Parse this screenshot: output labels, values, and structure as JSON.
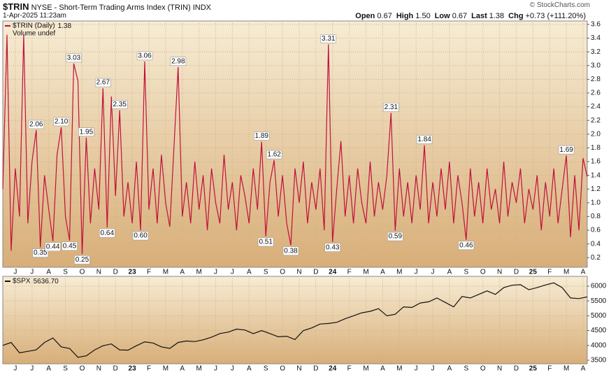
{
  "header": {
    "ticker": "$TRIN",
    "description": "NYSE - Short-Term Trading Arms Index (TRIN)",
    "exchange": "INDX",
    "datetime": "1-Apr-2025 11:23am",
    "quote": [
      {
        "label": "Open",
        "value": "0.67"
      },
      {
        "label": "High",
        "value": "1.50"
      },
      {
        "label": "Low",
        "value": "0.67"
      },
      {
        "label": "Last",
        "value": "1.38"
      },
      {
        "label": "Chg",
        "value": "+0.73 (+111.20%)"
      }
    ],
    "copyright": "© StockCharts.com"
  },
  "chart_data": [
    {
      "type": "line",
      "volume_note": "Volume undef",
      "grid": true,
      "xlim": [
        0,
        140
      ],
      "ylim": [
        0.06,
        3.65
      ],
      "yticks": [
        0.2,
        0.4,
        0.6,
        0.8,
        {
          "value": 1,
          "label": "1.0"
        },
        1.2,
        1.4,
        1.6,
        1.8,
        {
          "value": 2,
          "label": "2.0"
        },
        2.2,
        2.4,
        2.6,
        2.8,
        {
          "value": 3,
          "label": "3.0"
        },
        3.2,
        3.4,
        3.6
      ],
      "xticks": [
        {
          "value": 3,
          "label": "J"
        },
        {
          "value": 7,
          "label": "J"
        },
        {
          "value": 11,
          "label": "A"
        },
        {
          "value": 15,
          "label": "S"
        },
        {
          "value": 19,
          "label": "O"
        },
        {
          "value": 23,
          "label": "N"
        },
        {
          "value": 27,
          "label": "D"
        },
        {
          "value": 31,
          "label": "23"
        },
        {
          "value": 35,
          "label": "F"
        },
        {
          "value": 39,
          "label": "M"
        },
        {
          "value": 43,
          "label": "A"
        },
        {
          "value": 47,
          "label": "M"
        },
        {
          "value": 51,
          "label": "J"
        },
        {
          "value": 55,
          "label": "J"
        },
        {
          "value": 59,
          "label": "A"
        },
        {
          "value": 63,
          "label": "S"
        },
        {
          "value": 67,
          "label": "O"
        },
        {
          "value": 71,
          "label": "N"
        },
        {
          "value": 75,
          "label": "D"
        },
        {
          "value": 79,
          "label": "24"
        },
        {
          "value": 83,
          "label": "F"
        },
        {
          "value": 87,
          "label": "M"
        },
        {
          "value": 91,
          "label": "A"
        },
        {
          "value": 95,
          "label": "M"
        },
        {
          "value": 99,
          "label": "J"
        },
        {
          "value": 103,
          "label": "J"
        },
        {
          "value": 107,
          "label": "A"
        },
        {
          "value": 111,
          "label": "S"
        },
        {
          "value": 115,
          "label": "O"
        },
        {
          "value": 119,
          "label": "N"
        },
        {
          "value": 123,
          "label": "D"
        },
        {
          "value": 127,
          "label": "25"
        },
        {
          "value": 131,
          "label": "F"
        },
        {
          "value": 135,
          "label": "M"
        },
        {
          "value": 139,
          "label": "A"
        }
      ],
      "series": [
        {
          "name": "$TRIN (Daily)",
          "color": "#c0103a",
          "values": [
            1.2,
            3.45,
            0.3,
            1.5,
            0.8,
            3.45,
            0.7,
            1.6,
            2.06,
            0.35,
            1.4,
            0.9,
            0.44,
            1.7,
            2.1,
            0.8,
            0.45,
            3.03,
            2.78,
            0.25,
            1.95,
            0.7,
            1.5,
            0.9,
            2.67,
            0.64,
            2.55,
            1.1,
            2.35,
            0.8,
            1.3,
            0.7,
            1.6,
            0.6,
            3.06,
            0.9,
            1.5,
            0.7,
            1.7,
            1.0,
            0.65,
            1.8,
            2.98,
            0.8,
            1.3,
            0.7,
            1.6,
            0.9,
            1.4,
            0.6,
            1.5,
            1.0,
            0.7,
            1.7,
            0.9,
            1.3,
            0.6,
            1.4,
            1.1,
            0.7,
            1.5,
            0.9,
            1.89,
            0.51,
            1.3,
            1.62,
            0.8,
            1.4,
            0.7,
            0.38,
            1.5,
            1.0,
            1.6,
            0.7,
            1.3,
            0.9,
            1.5,
            0.6,
            3.31,
            0.43,
            1.2,
            1.9,
            0.8,
            1.4,
            0.7,
            1.5,
            1.0,
            0.7,
            1.6,
            0.8,
            1.3,
            0.9,
            1.4,
            2.31,
            0.59,
            1.5,
            0.8,
            1.3,
            0.7,
            1.4,
            0.9,
            1.84,
            0.7,
            1.3,
            0.8,
            1.5,
            0.9,
            1.6,
            0.7,
            1.4,
            1.0,
            0.46,
            1.5,
            0.8,
            1.3,
            0.7,
            1.5,
            0.9,
            1.2,
            0.7,
            1.6,
            0.8,
            1.3,
            1.0,
            1.5,
            0.7,
            1.2,
            0.9,
            1.4,
            0.6,
            1.3,
            0.8,
            1.5,
            0.7,
            1.2,
            1.69,
            0.5,
            1.4,
            0.6,
            1.65,
            1.38
          ],
          "value_labels": [
            null,
            null,
            null,
            null,
            null,
            null,
            null,
            null,
            "2.06",
            "0.35",
            null,
            null,
            "0.44",
            null,
            "2.10",
            null,
            "0.45",
            "3.03",
            null,
            "0.25",
            "1.95",
            null,
            null,
            null,
            "2.67",
            "0.64",
            null,
            null,
            "2.35",
            null,
            null,
            null,
            null,
            "0.60",
            "3.06",
            null,
            null,
            null,
            null,
            null,
            null,
            null,
            "2.98",
            null,
            null,
            null,
            null,
            null,
            null,
            null,
            null,
            null,
            null,
            null,
            null,
            null,
            null,
            null,
            null,
            null,
            null,
            null,
            "1.89",
            "0.51",
            null,
            "1.62",
            null,
            null,
            null,
            "0.38",
            null,
            null,
            null,
            null,
            null,
            null,
            null,
            null,
            "3.31",
            "0.43",
            null,
            null,
            null,
            null,
            null,
            null,
            null,
            null,
            null,
            null,
            null,
            null,
            null,
            "2.31",
            "0.59",
            null,
            null,
            null,
            null,
            null,
            null,
            "1.84",
            null,
            null,
            null,
            null,
            null,
            null,
            null,
            null,
            null,
            "0.46",
            null,
            null,
            null,
            null,
            null,
            null,
            null,
            null,
            null,
            null,
            null,
            null,
            null,
            null,
            null,
            null,
            null,
            null,
            null,
            null,
            null,
            null,
            null,
            "1.69",
            null,
            null,
            null,
            null,
            null
          ]
        }
      ]
    },
    {
      "type": "line",
      "grid": true,
      "xlim": [
        0,
        70
      ],
      "ylim": [
        3380,
        6330
      ],
      "yticks": [
        3500,
        4000,
        4500,
        5000,
        5500,
        6000
      ],
      "xticks": [
        {
          "value": 1.5,
          "label": "J"
        },
        {
          "value": 3.5,
          "label": "J"
        },
        {
          "value": 5.5,
          "label": "A"
        },
        {
          "value": 7.5,
          "label": "S"
        },
        {
          "value": 9.5,
          "label": "O"
        },
        {
          "value": 11.5,
          "label": "N"
        },
        {
          "value": 13.5,
          "label": "D"
        },
        {
          "value": 15.5,
          "label": "23"
        },
        {
          "value": 17.5,
          "label": "F"
        },
        {
          "value": 19.5,
          "label": "M"
        },
        {
          "value": 21.5,
          "label": "A"
        },
        {
          "value": 23.5,
          "label": "M"
        },
        {
          "value": 25.5,
          "label": "J"
        },
        {
          "value": 27.5,
          "label": "J"
        },
        {
          "value": 29.5,
          "label": "A"
        },
        {
          "value": 31.5,
          "label": "S"
        },
        {
          "value": 33.5,
          "label": "O"
        },
        {
          "value": 35.5,
          "label": "N"
        },
        {
          "value": 37.5,
          "label": "D"
        },
        {
          "value": 39.5,
          "label": "24"
        },
        {
          "value": 41.5,
          "label": "F"
        },
        {
          "value": 43.5,
          "label": "M"
        },
        {
          "value": 45.5,
          "label": "A"
        },
        {
          "value": 47.5,
          "label": "M"
        },
        {
          "value": 49.5,
          "label": "J"
        },
        {
          "value": 51.5,
          "label": "J"
        },
        {
          "value": 53.5,
          "label": "A"
        },
        {
          "value": 55.5,
          "label": "S"
        },
        {
          "value": 57.5,
          "label": "O"
        },
        {
          "value": 59.5,
          "label": "N"
        },
        {
          "value": 61.5,
          "label": "D"
        },
        {
          "value": 63.5,
          "label": "25"
        },
        {
          "value": 65.5,
          "label": "F"
        },
        {
          "value": 67.5,
          "label": "M"
        },
        {
          "value": 69.5,
          "label": "A"
        }
      ],
      "series": [
        {
          "name": "$SPX",
          "color": "#111111",
          "values": [
            4000,
            4100,
            3750,
            3800,
            3850,
            4100,
            4250,
            3950,
            3900,
            3600,
            3650,
            3850,
            3990,
            4050,
            3850,
            3840,
            3990,
            4120,
            4080,
            3950,
            3900,
            4100,
            4150,
            4130,
            4190,
            4280,
            4400,
            4450,
            4550,
            4520,
            4400,
            4500,
            4400,
            4290,
            4310,
            4200,
            4500,
            4590,
            4720,
            4740,
            4780,
            4900,
            5000,
            5100,
            5150,
            5240,
            5000,
            5050,
            5300,
            5280,
            5430,
            5470,
            5600,
            5450,
            5300,
            5650,
            5600,
            5720,
            5840,
            5720,
            5950,
            6030,
            6050,
            5880,
            5950,
            6040,
            6110,
            5950,
            5600,
            5580,
            5636.7
          ],
          "value_labels": [
            null,
            null,
            null,
            null,
            null,
            null,
            null,
            null,
            null,
            null,
            null,
            null,
            null,
            null,
            null,
            null,
            null,
            null,
            null,
            null,
            null,
            null,
            null,
            null,
            null,
            null,
            null,
            null,
            null,
            null,
            null,
            null,
            null,
            null,
            null,
            null,
            null,
            null,
            null,
            null,
            null,
            null,
            null,
            null,
            null,
            null,
            null,
            null,
            null,
            null,
            null,
            null,
            null,
            null,
            null,
            null,
            null,
            null,
            null,
            null,
            null,
            null,
            null,
            null,
            null,
            null,
            null,
            null,
            null,
            null,
            "5636.70"
          ]
        }
      ]
    }
  ]
}
